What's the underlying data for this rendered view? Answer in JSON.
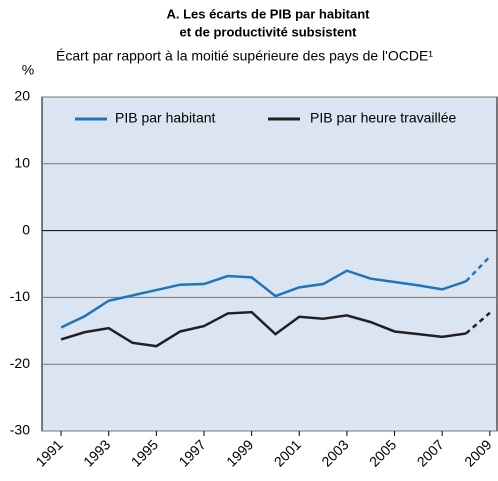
{
  "chart_data": {
    "type": "line",
    "title": [
      "A. Les écarts de PIB par habitant",
      "et de productivité subsistent"
    ],
    "subtitle": "Écart par rapport à la moitié supérieure des pays de l'OCDE¹",
    "y_unit": "%",
    "x": [
      1991,
      1992,
      1993,
      1994,
      1995,
      1996,
      1997,
      1998,
      1999,
      2000,
      2001,
      2002,
      2003,
      2004,
      2005,
      2006,
      2007,
      2008,
      2009
    ],
    "series": [
      {
        "name": "PIB par habitant",
        "color": "#1f74bb",
        "values": [
          -14.5,
          -12.8,
          -10.5,
          -9.7,
          -8.9,
          -8.1,
          -8.0,
          -6.8,
          -7.0,
          -9.8,
          -8.5,
          -8.0,
          -6.0,
          -7.2,
          -7.7,
          -8.2,
          -8.8,
          -7.6,
          -3.9
        ]
      },
      {
        "name": "PIB par heure travaillée",
        "color": "#231f20",
        "values": [
          -16.3,
          -15.2,
          -14.6,
          -16.8,
          -17.3,
          -15.1,
          -14.3,
          -12.4,
          -12.2,
          -15.5,
          -12.9,
          -13.2,
          -12.7,
          -13.7,
          -15.1,
          -15.5,
          -15.9,
          -15.4,
          -12.3
        ]
      }
    ],
    "dashed_after": 2008,
    "xlim": [
      1990.2,
      2009.3
    ],
    "xticks": [
      1991,
      1993,
      1995,
      1997,
      1999,
      2001,
      2003,
      2005,
      2007,
      2009
    ],
    "ylim": [
      -30,
      20
    ],
    "yticks": [
      -30,
      -20,
      -10,
      0,
      10,
      20
    ],
    "grid": true,
    "legend": "top",
    "background": "#dbe5f1"
  }
}
